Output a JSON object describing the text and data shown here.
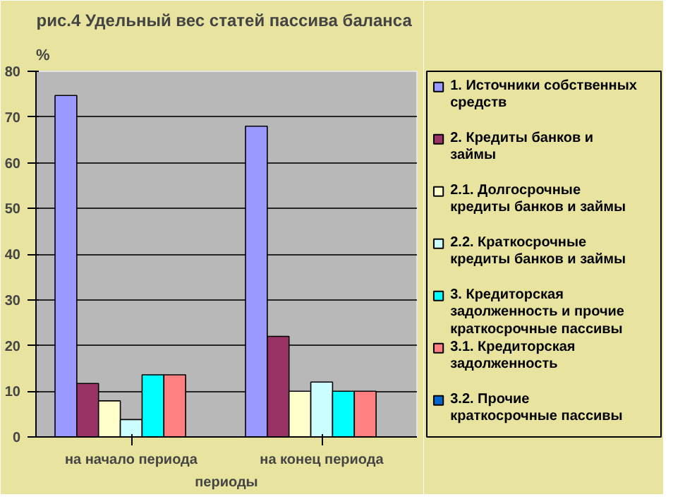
{
  "chart_data": {
    "type": "bar",
    "title": "рис.4 Удельный вес  статей пассива баланса",
    "ylabel": "%",
    "xlabel": "периоды",
    "categories": [
      "на начало периода",
      "на конец периода"
    ],
    "series": [
      {
        "name": "1. Источники собственных средств",
        "color": "#9999ff",
        "values": [
          74.7,
          68
        ]
      },
      {
        "name": "2. Кредиты банков и займы",
        "color": "#993366",
        "values": [
          11.7,
          22
        ]
      },
      {
        "name": "2.1. Долгосрочные кредиты банков и займы",
        "color": "#ffffcc",
        "values": [
          7.9,
          10
        ]
      },
      {
        "name": "2.2. Краткосрочные кредиты банков и займы",
        "color": "#ccffff",
        "values": [
          3.8,
          12
        ]
      },
      {
        "name": "3. Кредиторская задолженность и прочие краткосрочные пассивы",
        "color": "#00ffff",
        "values": [
          13.6,
          10
        ]
      },
      {
        "name": "3.1. Кредиторская задолженность",
        "color": "#ff8080",
        "values": [
          13.6,
          10
        ]
      },
      {
        "name": "3.2. Прочие краткосрочные пассивы",
        "color": "#0066cc",
        "values": [
          0,
          0
        ]
      }
    ],
    "ylim": [
      0,
      80
    ],
    "yticks": [
      0,
      10,
      20,
      30,
      40,
      50,
      60,
      70,
      80
    ],
    "grid": "y",
    "legend": "right"
  }
}
